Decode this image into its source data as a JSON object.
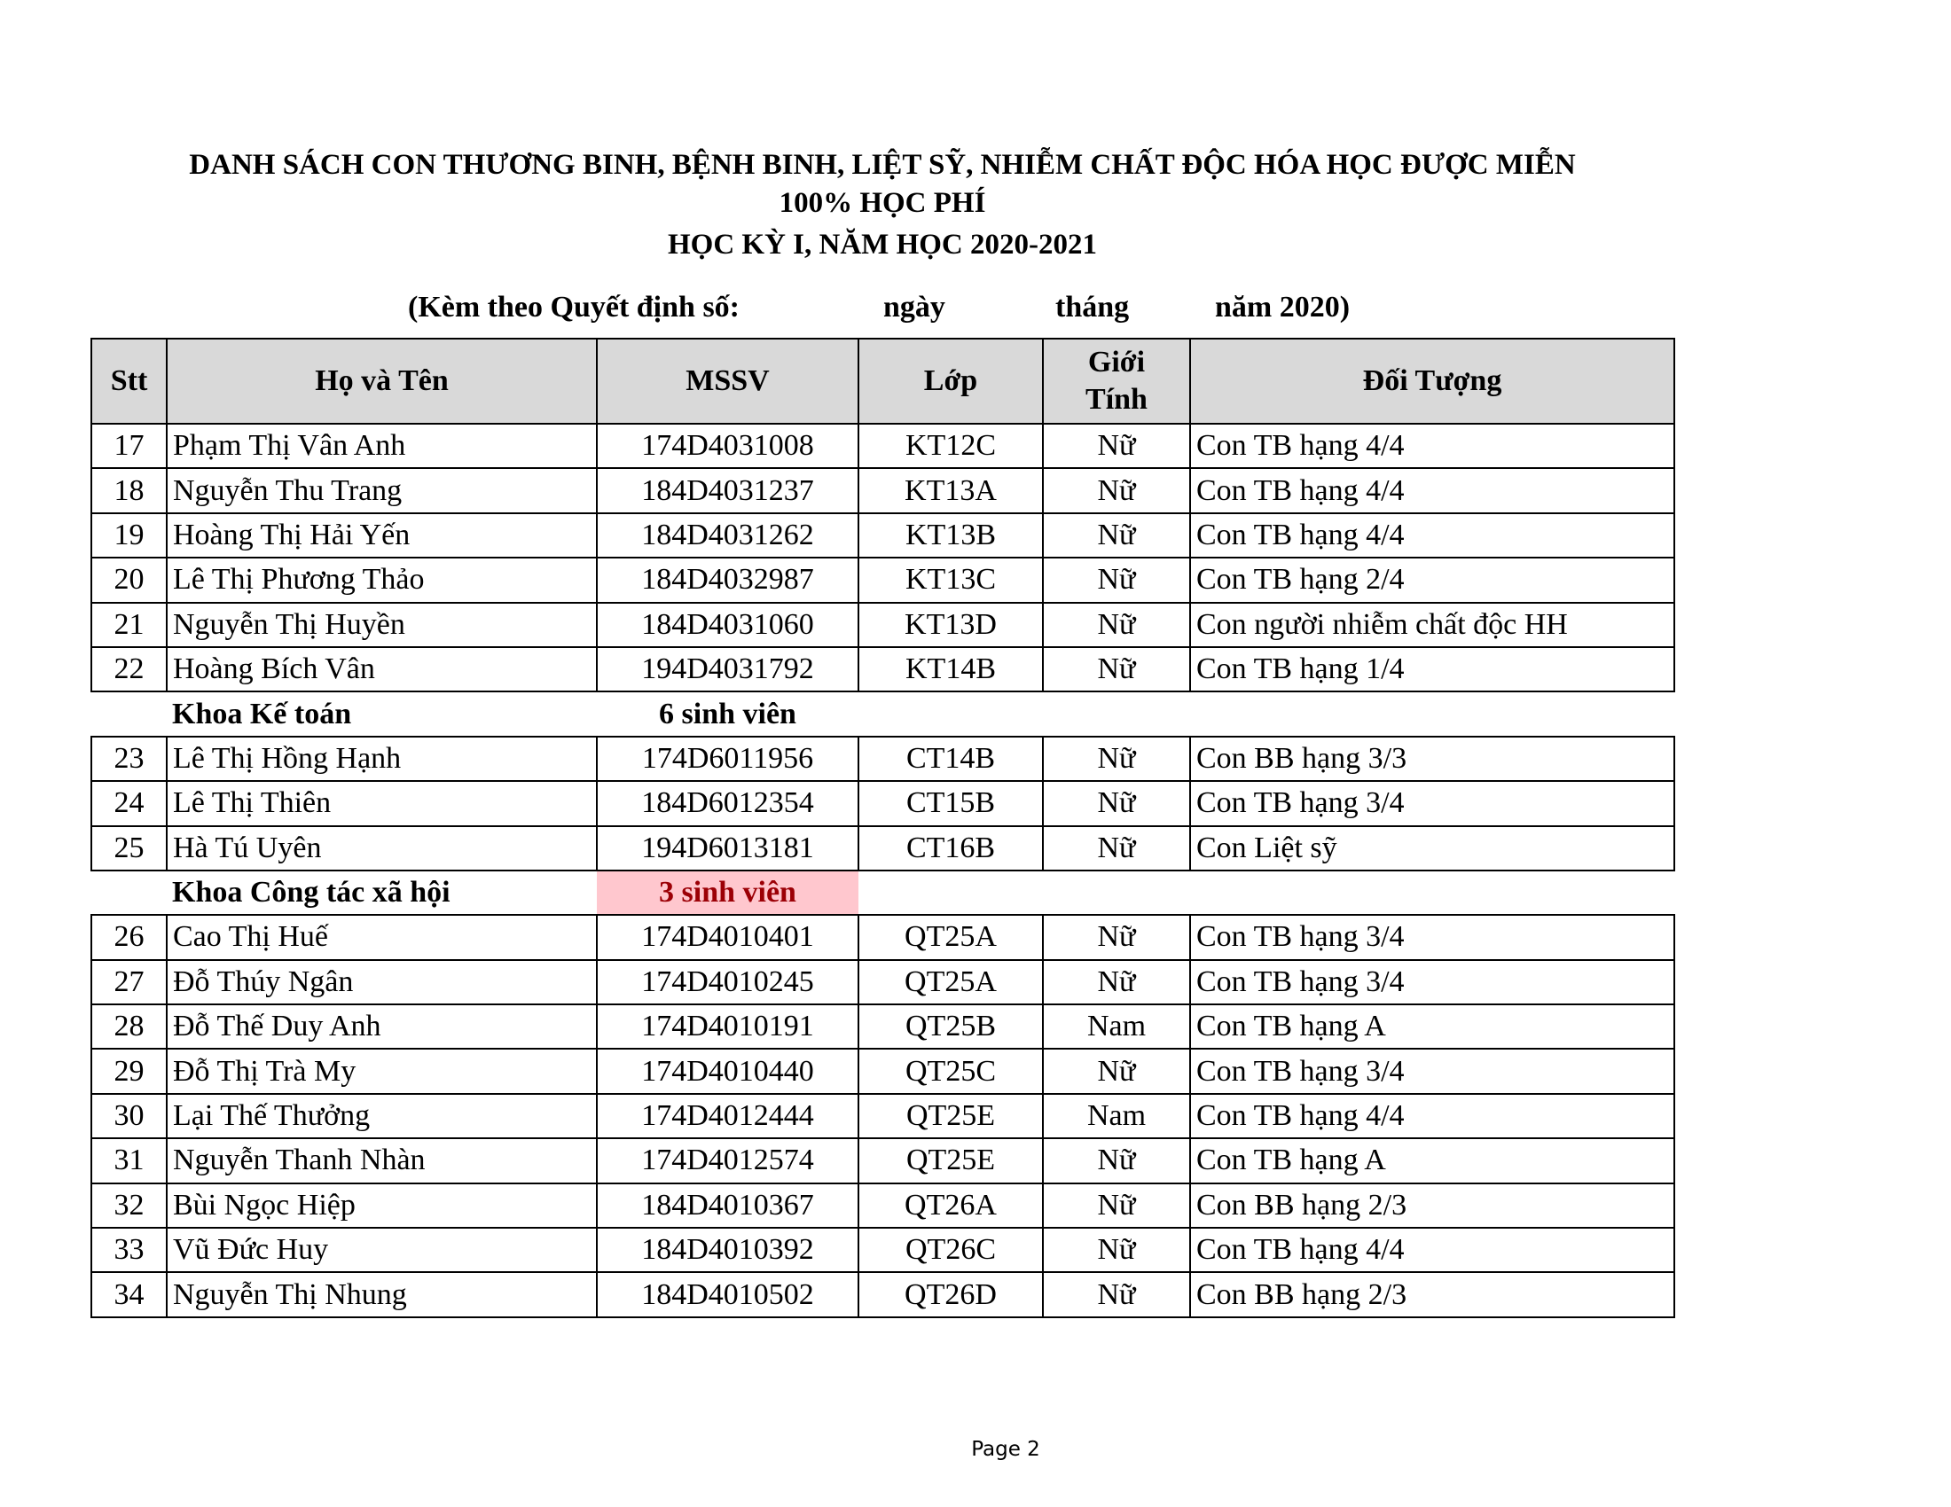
{
  "title": {
    "line1": "DANH SÁCH  CON THƯƠNG BINH, BỆNH BINH, LIỆT SỸ, NHIỄM CHẤT ĐỘC HÓA HỌC ĐƯỢC MIỄN",
    "line2": "100% HỌC PHÍ",
    "line3": "HỌC KỲ I, NĂM HỌC 2020-2021"
  },
  "subtitle": {
    "decision": "(Kèm theo Quyết định số:",
    "day": "ngày",
    "month": "tháng",
    "year": "năm 2020)"
  },
  "table": {
    "headers": {
      "stt": "Stt",
      "name": "Họ và Tên",
      "mssv": "MSSV",
      "class": "Lớp",
      "gender_1": "Giới",
      "gender_2": "Tính",
      "category": "Đối Tượng"
    },
    "rows": [
      {
        "type": "row",
        "stt": "17",
        "name": "Phạm Thị Vân Anh",
        "mssv": "174D4031008",
        "class": "KT12C",
        "gender": "Nữ",
        "category": "Con TB hạng 4/4"
      },
      {
        "type": "row",
        "stt": "18",
        "name": "Nguyễn Thu Trang",
        "mssv": "184D4031237",
        "class": "KT13A",
        "gender": "Nữ",
        "category": "Con TB hạng 4/4"
      },
      {
        "type": "row",
        "stt": "19",
        "name": "Hoàng Thị Hải Yến",
        "mssv": "184D4031262",
        "class": "KT13B",
        "gender": "Nữ",
        "category": "Con TB hạng 4/4"
      },
      {
        "type": "row",
        "stt": "20",
        "name": "Lê Thị Phương Thảo",
        "mssv": "184D4032987",
        "class": "KT13C",
        "gender": "Nữ",
        "category": "Con TB hạng 2/4"
      },
      {
        "type": "row",
        "stt": "21",
        "name": "Nguyễn Thị Huyền",
        "mssv": "184D4031060",
        "class": "KT13D",
        "gender": "Nữ",
        "category": "Con người nhiễm chất độc HH"
      },
      {
        "type": "row",
        "stt": "22",
        "name": "Hoàng Bích Vân",
        "mssv": "194D4031792",
        "class": "KT14B",
        "gender": "Nữ",
        "category": "Con TB hạng 1/4"
      },
      {
        "type": "group",
        "name": "Khoa Kế toán",
        "count": "6 sinh viên",
        "highlight": false
      },
      {
        "type": "row",
        "stt": "23",
        "name": "Lê Thị Hồng Hạnh",
        "mssv": "174D6011956",
        "class": "CT14B",
        "gender": "Nữ",
        "category": "Con BB hạng 3/3"
      },
      {
        "type": "row",
        "stt": "24",
        "name": "Lê Thị Thiên",
        "mssv": "184D6012354",
        "class": "CT15B",
        "gender": "Nữ",
        "category": "Con TB hạng 3/4"
      },
      {
        "type": "row",
        "stt": "25",
        "name": "Hà Tú Uyên",
        "mssv": "194D6013181",
        "class": "CT16B",
        "gender": "Nữ",
        "category": "Con Liệt sỹ"
      },
      {
        "type": "group",
        "name": "Khoa Công tác xã hội",
        "count": "3 sinh viên",
        "highlight": true
      },
      {
        "type": "row",
        "stt": "26",
        "name": "Cao Thị Huế",
        "mssv": "174D4010401",
        "class": "QT25A",
        "gender": "Nữ",
        "category": "Con TB hạng 3/4"
      },
      {
        "type": "row",
        "stt": "27",
        "name": "Đỗ Thúy Ngân",
        "mssv": "174D4010245",
        "class": "QT25A",
        "gender": "Nữ",
        "category": "Con TB hạng 3/4"
      },
      {
        "type": "row",
        "stt": "28",
        "name": "Đỗ Thế Duy Anh",
        "mssv": "174D4010191",
        "class": "QT25B",
        "gender": "Nam",
        "category": "Con TB hạng A"
      },
      {
        "type": "row",
        "stt": "29",
        "name": "Đỗ Thị Trà My",
        "mssv": "174D4010440",
        "class": "QT25C",
        "gender": "Nữ",
        "category": "Con TB hạng 3/4"
      },
      {
        "type": "row",
        "stt": "30",
        "name": "Lại Thế Thưởng",
        "mssv": "174D4012444",
        "class": "QT25E",
        "gender": "Nam",
        "category": "Con TB hạng 4/4"
      },
      {
        "type": "row",
        "stt": "31",
        "name": "Nguyễn Thanh Nhàn",
        "mssv": "174D4012574",
        "class": "QT25E",
        "gender": "Nữ",
        "category": "Con TB hạng A"
      },
      {
        "type": "row",
        "stt": "32",
        "name": "Bùi Ngọc Hiệp",
        "mssv": "184D4010367",
        "class": "QT26A",
        "gender": "Nữ",
        "category": "Con BB hạng 2/3"
      },
      {
        "type": "row",
        "stt": "33",
        "name": "Vũ Đức Huy",
        "mssv": "184D4010392",
        "class": "QT26C",
        "gender": "Nữ",
        "category": "Con TB hạng 4/4"
      },
      {
        "type": "row",
        "stt": "34",
        "name": "Nguyễn Thị Nhung",
        "mssv": "184D4010502",
        "class": "QT26D",
        "gender": "Nữ",
        "category": "Con BB hạng 2/3"
      }
    ]
  },
  "colors": {
    "header_bg": "#d9d9d9",
    "highlight_bg": "#ffc7ce",
    "highlight_text": "#9c0006"
  },
  "footer": {
    "page": "Page 2"
  }
}
